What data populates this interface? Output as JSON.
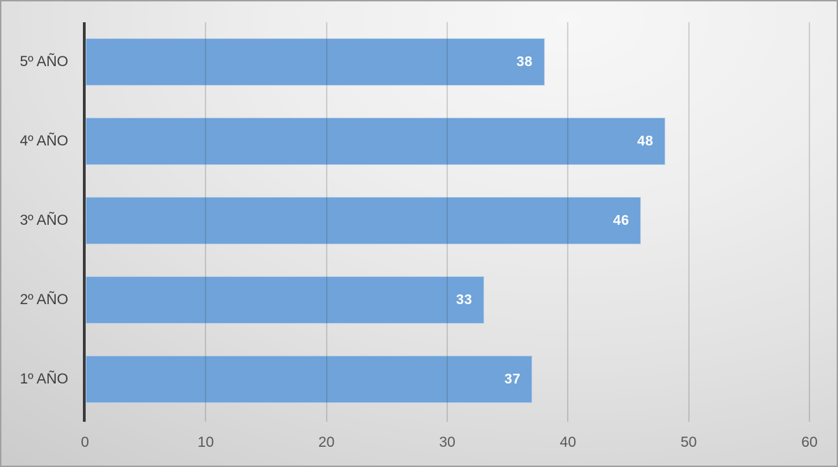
{
  "chart_data": {
    "type": "bar",
    "orientation": "horizontal",
    "title": "",
    "xlabel": "",
    "ylabel": "",
    "categories": [
      "5º AÑO",
      "4º AÑO",
      "3º AÑO",
      "2º AÑO",
      "1º AÑO"
    ],
    "values": [
      38,
      48,
      46,
      33,
      37
    ],
    "value_labels": [
      "38",
      "48",
      "46",
      "33",
      "37"
    ],
    "xlim": [
      0,
      60
    ],
    "xticks": [
      0,
      10,
      20,
      30,
      40,
      50,
      60
    ],
    "grid": "vertical-major",
    "legend": "none",
    "value_label_position": "inside-end",
    "colors": {
      "bar_fill": "#6fa3d9",
      "value_label": "#ffffff",
      "category_label": "#3f3f3f",
      "tick_label": "#595959",
      "axis_line": "#3b3b3b",
      "background_light": "#f2f2f2",
      "background_dark": "#c7c7c7",
      "border": "#a0a0a0"
    }
  }
}
